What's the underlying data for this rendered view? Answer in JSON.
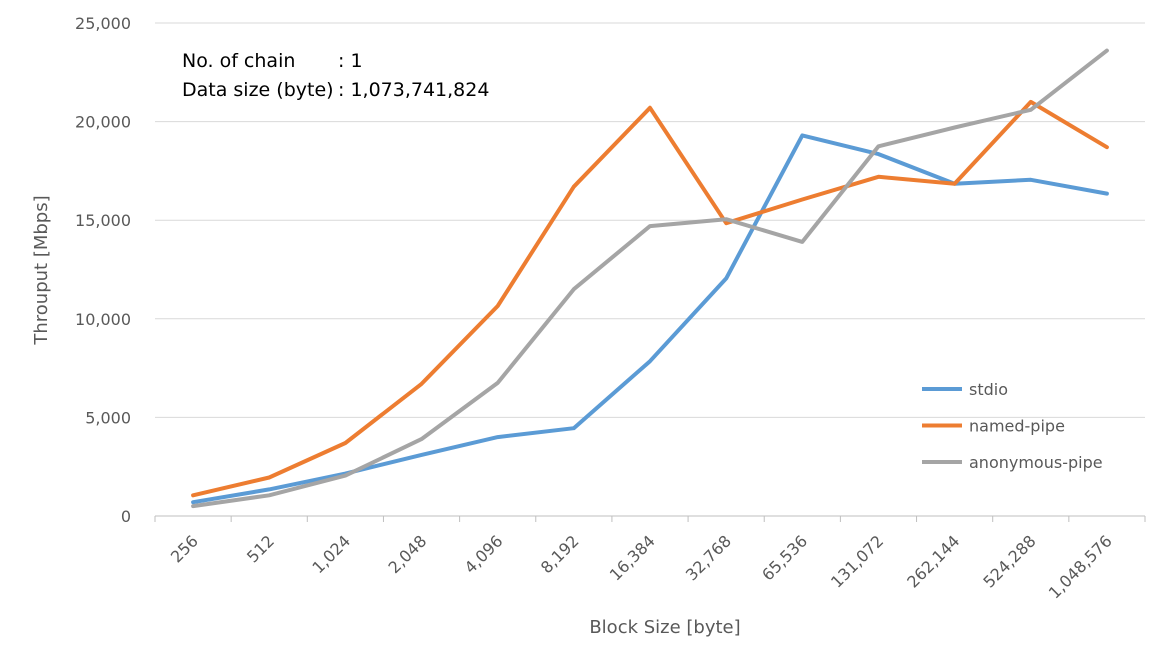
{
  "chart_data": {
    "type": "line",
    "x": [
      "256",
      "512",
      "1,024",
      "2,048",
      "4,096",
      "8,192",
      "16,384",
      "32,768",
      "65,536",
      "131,072",
      "262,144",
      "524,288",
      "1,048,576"
    ],
    "xlabel": "Block Size [byte]",
    "ylabel": "Throuput [Mbps]",
    "ylim": [
      0,
      25000
    ],
    "yticks": [
      0,
      5000,
      10000,
      15000,
      20000,
      25000
    ],
    "ytick_labels": [
      "0",
      "5,000",
      "10,000",
      "15,000",
      "20,000",
      "25,000"
    ],
    "grid": "horizontal",
    "legend_position": "right",
    "annotations": {
      "chain_label": "No. of chain",
      "chain_value": ": 1",
      "size_label": "Data size (byte)",
      "size_value": ": 1,073,741,824"
    },
    "series": [
      {
        "name": "stdio",
        "color": "#5b9bd5",
        "values": [
          700,
          1350,
          2150,
          3100,
          4000,
          4450,
          7850,
          12050,
          19300,
          18350,
          16850,
          17050,
          16350
        ]
      },
      {
        "name": "named-pipe",
        "color": "#ed7d31",
        "values": [
          1050,
          1950,
          3700,
          6700,
          10650,
          16700,
          20700,
          14850,
          16050,
          17200,
          16850,
          21000,
          18700
        ]
      },
      {
        "name": "anonymous-pipe",
        "color": "#a5a5a5",
        "values": [
          500,
          1050,
          2050,
          3900,
          6750,
          11500,
          14700,
          15050,
          13900,
          18750,
          19700,
          20600,
          23600
        ]
      }
    ]
  }
}
